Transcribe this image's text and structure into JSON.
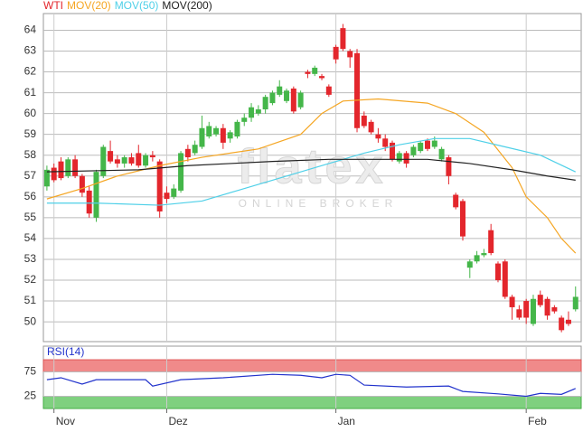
{
  "chart_data": [
    {
      "type": "candlestick",
      "grid": true,
      "legend_position": "top-left",
      "xlim": [
        -0.5,
        75.8
      ],
      "ylim": [
        49.05,
        64.8
      ],
      "yticks": [
        50,
        51,
        52,
        53,
        54,
        55,
        56,
        57,
        58,
        59,
        60,
        61,
        62,
        63,
        64
      ],
      "watermark": {
        "brand": "flatex",
        "tagline": "ONLINE BROKER"
      },
      "series": [
        {
          "name": "WTI",
          "color": "#e3262c",
          "up_color": "#44b649",
          "x": [
            0,
            1,
            2,
            3,
            4,
            5,
            6,
            7,
            8,
            9,
            10,
            11,
            12,
            13,
            14,
            15,
            16,
            17,
            18,
            19,
            20,
            21,
            22,
            23,
            24,
            25,
            26,
            27,
            28,
            29,
            30,
            31,
            32,
            33,
            34,
            35,
            36,
            37,
            38,
            39,
            40,
            41,
            42,
            43,
            44,
            45,
            46,
            47,
            48,
            49,
            50,
            51,
            52,
            53,
            54,
            55,
            56,
            57,
            58,
            59,
            60,
            61,
            62,
            63,
            64,
            65,
            66,
            67,
            68,
            69,
            70,
            71,
            72,
            73,
            74,
            75
          ],
          "open": [
            56.5,
            57.4,
            57.7,
            57.0,
            57.8,
            57.0,
            56.3,
            55.0,
            57.0,
            58.2,
            57.8,
            57.6,
            57.9,
            58.1,
            57.5,
            58.0,
            57.7,
            56.2,
            56.0,
            56.3,
            58.3,
            58.1,
            58.4,
            58.9,
            59.0,
            59.3,
            58.8,
            58.9,
            59.6,
            59.8,
            60.0,
            60.2,
            60.5,
            60.9,
            60.6,
            61.2,
            60.3,
            62.0,
            61.9,
            61.8,
            61.3,
            63.2,
            64.1,
            63.0,
            62.9,
            59.9,
            59.6,
            59.0,
            58.8,
            58.6,
            57.7,
            58.1,
            58.0,
            58.2,
            58.7,
            58.4,
            57.8,
            57.9,
            56.1,
            55.8,
            52.6,
            52.9,
            53.2,
            54.4,
            52.8,
            52.9,
            51.2,
            50.6,
            51.0,
            49.9,
            51.3,
            51.1,
            50.7,
            50.2,
            50.1,
            50.6
          ],
          "high": [
            57.5,
            57.6,
            57.9,
            57.9,
            58.0,
            57.1,
            56.5,
            57.3,
            58.5,
            58.7,
            58.0,
            58.0,
            58.1,
            58.5,
            58.1,
            58.2,
            57.8,
            56.5,
            56.6,
            58.2,
            58.5,
            58.7,
            59.9,
            59.6,
            59.4,
            59.5,
            59.2,
            59.7,
            60.0,
            60.5,
            60.4,
            60.9,
            61.1,
            61.6,
            61.2,
            61.3,
            61.1,
            62.1,
            62.3,
            61.9,
            61.4,
            63.3,
            64.3,
            63.1,
            63.1,
            60.1,
            59.7,
            59.3,
            59.0,
            58.7,
            58.2,
            58.2,
            58.5,
            58.7,
            58.8,
            58.9,
            58.4,
            58.0,
            56.2,
            55.9,
            53.0,
            53.4,
            53.5,
            54.7,
            52.9,
            53.0,
            51.3,
            50.8,
            51.1,
            51.3,
            51.5,
            51.2,
            50.8,
            50.3,
            50.5,
            51.7
          ],
          "low": [
            56.3,
            56.7,
            56.8,
            56.9,
            56.9,
            56.0,
            55.0,
            54.8,
            56.9,
            57.6,
            57.4,
            57.4,
            57.5,
            57.4,
            57.4,
            57.7,
            55.0,
            55.7,
            55.9,
            56.2,
            57.7,
            58.0,
            58.3,
            58.8,
            58.9,
            58.3,
            58.6,
            58.8,
            59.4,
            59.6,
            59.9,
            60.0,
            60.4,
            60.8,
            60.5,
            60.0,
            60.2,
            61.7,
            61.8,
            61.6,
            60.8,
            62.4,
            63.0,
            62.2,
            59.1,
            59.3,
            59.0,
            58.6,
            58.2,
            57.7,
            57.6,
            57.4,
            57.9,
            58.1,
            58.2,
            58.3,
            57.7,
            56.6,
            55.4,
            53.9,
            52.1,
            52.8,
            53.1,
            53.2,
            51.9,
            51.1,
            50.1,
            50.1,
            49.9,
            49.8,
            50.7,
            50.1,
            50.4,
            49.5,
            49.8,
            50.5
          ],
          "close": [
            57.3,
            56.8,
            56.9,
            57.8,
            57.0,
            56.2,
            55.2,
            57.2,
            58.4,
            57.7,
            57.6,
            57.9,
            57.6,
            57.5,
            58.0,
            57.9,
            55.3,
            55.9,
            56.4,
            58.1,
            57.9,
            58.5,
            59.3,
            59.4,
            59.3,
            58.6,
            59.1,
            59.6,
            59.8,
            60.3,
            60.2,
            60.8,
            61.0,
            61.3,
            61.1,
            60.1,
            61.0,
            61.9,
            62.2,
            61.7,
            60.9,
            62.6,
            63.1,
            62.7,
            59.3,
            59.4,
            59.1,
            58.8,
            58.4,
            57.8,
            58.1,
            57.6,
            58.4,
            58.6,
            58.3,
            58.7,
            58.3,
            57.0,
            55.5,
            54.1,
            52.9,
            53.2,
            53.3,
            53.3,
            52.0,
            51.2,
            50.7,
            50.2,
            50.2,
            51.1,
            50.8,
            50.3,
            50.5,
            49.6,
            49.9,
            51.2
          ]
        },
        {
          "name": "MOV(20)",
          "color": "#f5a623",
          "x": [
            0,
            5,
            10,
            16,
            22,
            30,
            36,
            39,
            42,
            47,
            54,
            58,
            62,
            66,
            68,
            71,
            73,
            75
          ],
          "values": [
            55.9,
            56.4,
            57.0,
            57.5,
            57.9,
            58.3,
            59.0,
            60.0,
            60.6,
            60.7,
            60.5,
            60.0,
            59.1,
            57.4,
            56.0,
            55.0,
            54.0,
            53.3
          ]
        },
        {
          "name": "MOV(50)",
          "color": "#4fd0e8",
          "x": [
            0,
            7,
            16,
            22,
            27,
            34,
            40,
            45,
            50,
            55,
            60,
            65,
            70,
            75
          ],
          "values": [
            55.7,
            55.7,
            55.6,
            55.8,
            56.3,
            57.0,
            57.6,
            58.1,
            58.5,
            58.8,
            58.8,
            58.4,
            58.0,
            57.2
          ]
        },
        {
          "name": "MOV(200)",
          "color": "#222222",
          "x": [
            0,
            13,
            20,
            26,
            32,
            40,
            47,
            54,
            60,
            66,
            71,
            75
          ],
          "values": [
            57.2,
            57.3,
            57.5,
            57.6,
            57.7,
            57.8,
            57.8,
            57.8,
            57.6,
            57.3,
            57.0,
            56.8
          ]
        }
      ]
    },
    {
      "type": "line",
      "title": "RSI(14)",
      "title_color": "#2233cc",
      "grid": true,
      "xlim": [
        -0.5,
        75.8
      ],
      "ylim": [
        0,
        100
      ],
      "yticks": [
        25,
        75
      ],
      "upper_band_color": "#f08a8a",
      "lower_band_color": "#7fd07f",
      "xticks": [
        {
          "value": 1,
          "label": "Nov"
        },
        {
          "value": 17,
          "label": "Dez"
        },
        {
          "value": 41,
          "label": "Jan"
        },
        {
          "value": 68,
          "label": "Feb"
        }
      ],
      "series": [
        {
          "color": "#2233cc",
          "x": [
            0,
            2,
            5,
            7,
            14,
            15,
            19,
            25,
            32,
            36,
            39,
            41,
            43,
            45,
            51,
            57,
            59,
            64,
            68,
            70,
            73,
            75
          ],
          "values": [
            59,
            63,
            50,
            59,
            59,
            46,
            59,
            63,
            70,
            68,
            63,
            70,
            68,
            48,
            44,
            46,
            35,
            30,
            25,
            31,
            29,
            41
          ]
        }
      ]
    }
  ]
}
